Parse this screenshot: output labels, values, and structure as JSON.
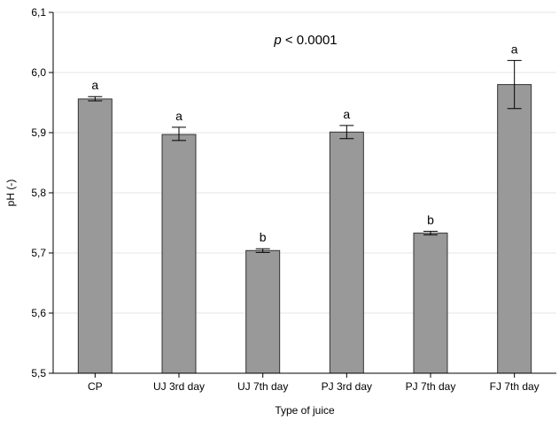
{
  "chart_data": {
    "type": "bar",
    "xlabel": "Type of juice",
    "ylabel": "pH (-)",
    "ylim": [
      5.5,
      6.1
    ],
    "yticks": [
      "5,5",
      "5,6",
      "5,7",
      "5,8",
      "5,9",
      "6,0",
      "6,1"
    ],
    "grid": true,
    "annotation": {
      "italic": "p",
      "text": " < 0.0001"
    },
    "categories": [
      "CP",
      "UJ 3rd day",
      "UJ 7th day",
      "PJ 3rd day",
      "PJ 7th day",
      "FJ 7th day"
    ],
    "values": [
      5.956,
      5.897,
      5.704,
      5.901,
      5.733,
      5.98
    ],
    "error_low": [
      5.953,
      5.887,
      5.701,
      5.89,
      5.73,
      5.94
    ],
    "error_high": [
      5.96,
      5.909,
      5.707,
      5.912,
      5.736,
      6.02
    ],
    "group_labels": [
      "a",
      "a",
      "b",
      "a",
      "b",
      "a"
    ],
    "colors": {
      "bar_fill": "#999999",
      "bar_stroke": "#333333",
      "grid": "#e6e6e6",
      "axis": "#000000"
    }
  }
}
